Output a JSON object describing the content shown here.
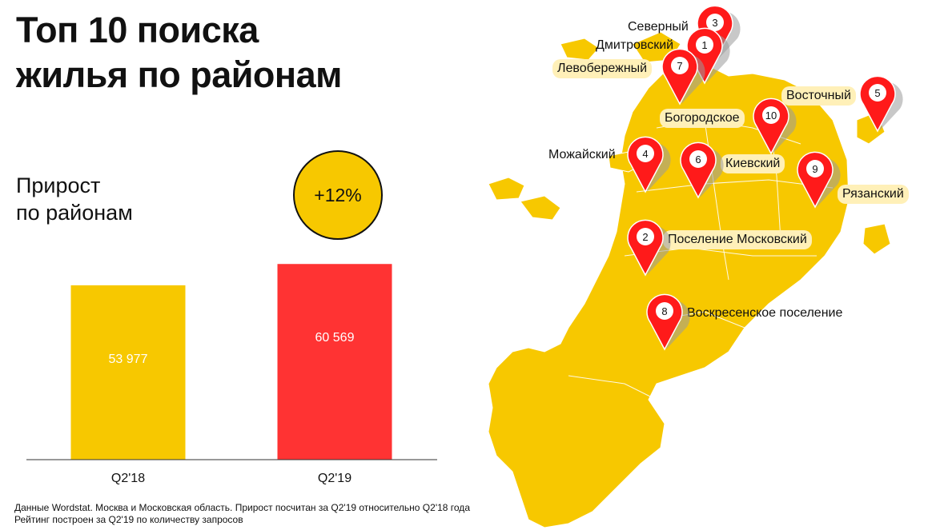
{
  "title_line1": "Топ 10 поиска",
  "title_line2": "жилья по районам",
  "subtitle_line1": "Прирост",
  "subtitle_line2": "по районам",
  "growth_badge": "+12%",
  "colors": {
    "accent_yellow": "#f7c800",
    "accent_red": "#ff3333",
    "map_fill": "#f7c800",
    "label_bg": "#fff0b8",
    "pin_red": "#ff1a1a"
  },
  "chart_data": {
    "type": "bar",
    "categories": [
      "Q2'18",
      "Q2'19"
    ],
    "values": [
      53977,
      60569
    ],
    "value_labels": [
      "53 977",
      "60 569"
    ],
    "bar_colors": [
      "#f7c800",
      "#ff3333"
    ],
    "ylim": [
      0,
      73000
    ],
    "grid": false,
    "legend": "none"
  },
  "districts": [
    {
      "rank": "1",
      "name": "Дмитровский"
    },
    {
      "rank": "2",
      "name": "Поселение Московский"
    },
    {
      "rank": "3",
      "name": "Северный"
    },
    {
      "rank": "4",
      "name": "Можайский"
    },
    {
      "rank": "5",
      "name": "Восточный"
    },
    {
      "rank": "6",
      "name": "Киевский"
    },
    {
      "rank": "7",
      "name": "Левобережный"
    },
    {
      "rank": "8",
      "name": "Воскресенское поселение"
    },
    {
      "rank": "9",
      "name": "Рязанский"
    },
    {
      "rank": "10",
      "name": "Богородское"
    }
  ],
  "footnote_line1": "Данные Wordstat. Москва и Московская область. Прирост посчитан за Q2'19 относительно Q2'18 года",
  "footnote_line2": "Рейтинг построен за Q2'19 по количеству запросов"
}
